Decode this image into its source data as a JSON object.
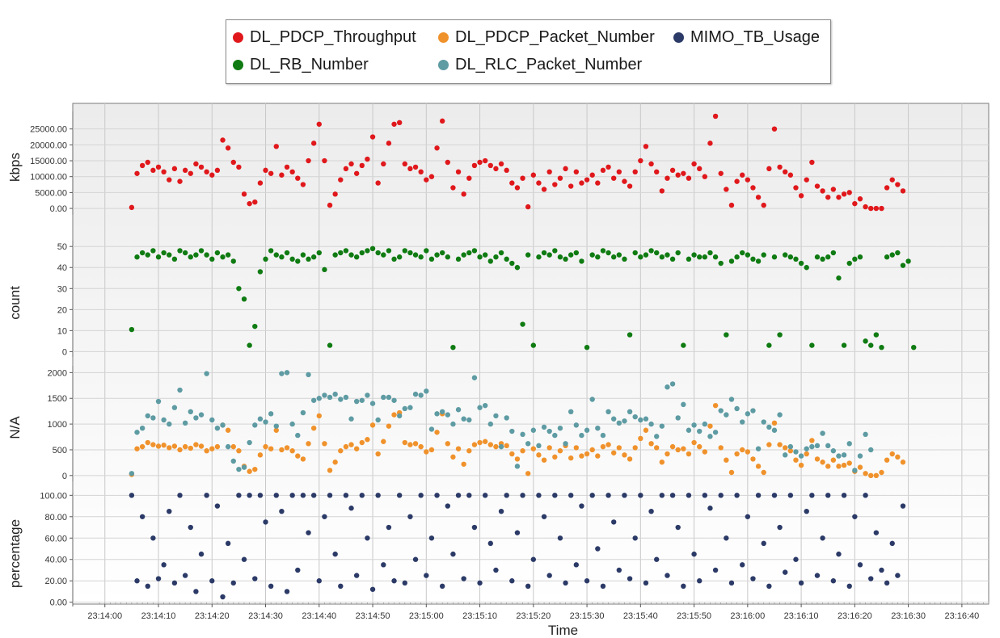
{
  "legend": {
    "items": [
      {
        "label": "DL_PDCP_Throughput",
        "color": "#e0181c"
      },
      {
        "label": "DL_PDCP_Packet_Number",
        "color": "#f0922c"
      },
      {
        "label": "MIMO_TB_Usage",
        "color": "#2b3a67"
      },
      {
        "label": "DL_RB_Number",
        "color": "#0f7b12"
      },
      {
        "label": "DL_RLC_Packet_Number",
        "color": "#5e9ba3"
      }
    ]
  },
  "chart_data": {
    "type": "scatter",
    "xlabel": "Time",
    "x_ticks": [
      "23:14:00",
      "23:14:10",
      "23:14:20",
      "23:14:30",
      "23:14:40",
      "23:14:50",
      "23:15:00",
      "23:15:10",
      "23:15:20",
      "23:15:30",
      "23:15:40",
      "23:15:50",
      "23:16:00",
      "23:16:10",
      "23:16:20",
      "23:16:30",
      "23:16:40"
    ],
    "x_range_seconds": [
      -6,
      165
    ],
    "panels": [
      {
        "ylabel": "kbps",
        "ylim": [
          -1000,
          30000
        ],
        "y_ticks": [
          "0.00",
          "5000.00",
          "10000.00",
          "15000.00",
          "20000.00",
          "25000.00"
        ],
        "series": [
          {
            "name": "DL_PDCP_Throughput",
            "color": "#e0181c",
            "x_start": 5,
            "x_step": 1,
            "values": [
              300,
              11000,
              13500,
              14500,
              12000,
              13000,
              11500,
              9000,
              12500,
              8500,
              12000,
              11000,
              14000,
              13000,
              11500,
              10500,
              12000,
              21500,
              19000,
              14500,
              13000,
              4500,
              1500,
              2000,
              8000,
              12000,
              11000,
              19500,
              10500,
              13000,
              11500,
              9500,
              7500,
              15000,
              20500,
              26500,
              15000,
              1000,
              4500,
              9000,
              12500,
              14000,
              11000,
              13500,
              15500,
              22500,
              8000,
              14000,
              20500,
              26500,
              27000,
              14000,
              12500,
              13000,
              11500,
              9000,
              10000,
              19000,
              27500,
              14500,
              6500,
              11500,
              4500,
              9500,
              13500,
              14500,
              15000,
              13500,
              12500,
              14000,
              12000,
              8000,
              6500,
              9500,
              500,
              10500,
              8000,
              6000,
              11500,
              7500,
              9500,
              12500,
              7000,
              11500,
              8000,
              9000,
              10500,
              8000,
              12000,
              13000,
              9500,
              11500,
              8500,
              7000,
              11500,
              15000,
              19500,
              14000,
              11500,
              5500,
              9500,
              12000,
              10500,
              11000,
              9500,
              14000,
              12500,
              10000,
              20500,
              29000,
              11000,
              6000,
              1000,
              8500,
              10500,
              9000,
              6500,
              3500,
              1000,
              12500,
              25000,
              13000,
              11500,
              10500,
              6500,
              4000,
              9000,
              14500,
              7000,
              5500,
              3500,
              6000,
              3500,
              4500,
              5000,
              1500,
              3000,
              500,
              0,
              0,
              0,
              6500,
              9000,
              7500,
              5500
            ]
          }
        ]
      },
      {
        "ylabel": "count",
        "ylim": [
          -1,
          52
        ],
        "y_ticks": [
          "0",
          "10",
          "20",
          "30",
          "40",
          "50"
        ],
        "series": [
          {
            "name": "DL_RB_Number",
            "color": "#0f7b12",
            "x_start": 5,
            "x_step": 1,
            "values": [
              10.5,
              45,
              47,
              46,
              48,
              45,
              47,
              46,
              44,
              48,
              47,
              45,
              46,
              48,
              46,
              44,
              47,
              45,
              46,
              43,
              30,
              25,
              3,
              12,
              38,
              44,
              48,
              46,
              45,
              47,
              44,
              43,
              46,
              44,
              45,
              47,
              39,
              3,
              46,
              47,
              48,
              46,
              45,
              47,
              48,
              49,
              47,
              46,
              48,
              44,
              45,
              48,
              47,
              46,
              45,
              48,
              44,
              46,
              47,
              45,
              2,
              44,
              46,
              47,
              48,
              45,
              46,
              43,
              45,
              47,
              44,
              42,
              40,
              13,
              46,
              3,
              45,
              47,
              46,
              48,
              45,
              44,
              46,
              47,
              43,
              2,
              46,
              45,
              48,
              47,
              45,
              46,
              44,
              8,
              47,
              45,
              46,
              48,
              47,
              45,
              46,
              44,
              47,
              3,
              44,
              46,
              45,
              45,
              47,
              45,
              42,
              8,
              43,
              45,
              47,
              46,
              44,
              43,
              46,
              3,
              45,
              8,
              46,
              45,
              44,
              42,
              40,
              3,
              45,
              44,
              45,
              47,
              35,
              3,
              42,
              44,
              45,
              5,
              3,
              8,
              2,
              45,
              46,
              47,
              41,
              43,
              2
            ]
          }
        ]
      },
      {
        "ylabel": "N/A",
        "ylim": [
          -50,
          2100
        ],
        "y_ticks": [
          "0",
          "500",
          "1000",
          "1500",
          "2000"
        ],
        "series": [
          {
            "name": "DL_PDCP_Packet_Number",
            "color": "#f0922c",
            "x_start": 5,
            "x_step": 1,
            "values": [
              20,
              520,
              560,
              640,
              600,
              570,
              590,
              540,
              570,
              500,
              560,
              530,
              600,
              570,
              480,
              520,
              560,
              980,
              880,
              560,
              480,
              180,
              80,
              120,
              400,
              560,
              520,
              880,
              500,
              540,
              480,
              380,
              320,
              620,
              920,
              1160,
              620,
              100,
              260,
              480,
              560,
              600,
              520,
              640,
              700,
              980,
              420,
              660,
              960,
              1180,
              1220,
              640,
              600,
              620,
              560,
              460,
              500,
              840,
              1200,
              620,
              360,
              520,
              220,
              480,
              600,
              640,
              660,
              600,
              560,
              620,
              580,
              420,
              320,
              480,
              40,
              520,
              400,
              300,
              540,
              360,
              480,
              580,
              340,
              540,
              380,
              420,
              500,
              380,
              560,
              600,
              440,
              540,
              400,
              320,
              540,
              720,
              880,
              620,
              540,
              260,
              420,
              560,
              500,
              520,
              420,
              640,
              560,
              460,
              960,
              1360,
              540,
              300,
              60,
              420,
              500,
              460,
              320,
              180,
              60,
              600,
              1020,
              600,
              540,
              480,
              300,
              200,
              420,
              680,
              320,
              260,
              180,
              300,
              180,
              200,
              240,
              80,
              160,
              40,
              0,
              0,
              60,
              300,
              420,
              360,
              260
            ]
          },
          {
            "name": "DL_RLC_Packet_Number",
            "color": "#5e9ba3",
            "x_start": 5,
            "x_step": 1,
            "values": [
              40,
              840,
              920,
              1160,
              1120,
              1440,
              1080,
              1000,
              1320,
              1660,
              1020,
              1240,
              1120,
              1180,
              1980,
              1080,
              920,
              980,
              560,
              280,
              120,
              160,
              640,
              980,
              1100,
              1040,
              1200,
              960,
              1980,
              2000,
              1000,
              780,
              1220,
              1960,
              1460,
              1500,
              1560,
              1520,
              1580,
              1480,
              1520,
              1100,
              1440,
              1460,
              1560,
              1400,
              1080,
              1520,
              1520,
              1460,
              1160,
              1300,
              1320,
              1580,
              1560,
              1640,
              900,
              1200,
              1240,
              1180,
              1000,
              1280,
              1100,
              1080,
              1900,
              1320,
              1360,
              1000,
              1160,
              560,
              1120,
              860,
              180,
              800,
              620,
              880,
              580,
              940,
              860,
              780,
              920,
              620,
              1240,
              980,
              780,
              880,
              1480,
              920,
              780,
              1240,
              1100,
              1020,
              1060,
              1240,
              1140,
              1080,
              1100,
              1000,
              760,
              960,
              1720,
              1780,
              1120,
              1380,
              880,
              980,
              860,
              1000,
              760,
              840,
              1260,
              1180,
              1480,
              1300,
              1040,
              1200,
              1260,
              520,
              1040,
              940,
              880,
              1180,
              400,
              560,
              460,
              380,
              520,
              560,
              580,
              820,
              580,
              480,
              380,
              400,
              620,
              100,
              380,
              800,
              500
            ]
          }
        ]
      },
      {
        "ylabel": "percentage",
        "ylim": [
          -1,
          101
        ],
        "y_ticks": [
          "0.00",
          "20.00",
          "40.00",
          "60.00",
          "80.00",
          "100.00"
        ],
        "series": [
          {
            "name": "MIMO_TB_Usage",
            "color": "#2b3a67",
            "x_start": 5,
            "x_step": 1,
            "values": [
              100,
              20,
              80,
              15,
              60,
              22,
              35,
              85,
              18,
              100,
              25,
              70,
              10,
              45,
              100,
              20,
              90,
              5,
              55,
              18,
              100,
              40,
              100,
              22,
              100,
              75,
              15,
              100,
              85,
              10,
              100,
              30,
              100,
              65,
              100,
              20,
              80,
              100,
              45,
              15,
              100,
              88,
              25,
              100,
              60,
              12,
              100,
              35,
              70,
              20,
              100,
              18,
              80,
              40,
              100,
              25,
              60,
              100,
              15,
              90,
              45,
              100,
              22,
              100,
              70,
              18,
              100,
              55,
              30,
              85,
              100,
              20,
              65,
              100,
              15,
              40,
              100,
              80,
              25,
              100,
              60,
              18,
              100,
              35,
              90,
              20,
              100,
              50,
              15,
              100,
              75,
              30,
              100,
              22,
              60,
              100,
              18,
              85,
              40,
              100,
              25,
              100,
              70,
              15,
              100,
              45,
              20,
              100,
              88,
              30,
              100,
              60,
              18,
              100,
              35,
              80,
              22,
              100,
              55,
              15,
              100,
              70,
              28,
              100,
              40,
              18,
              85,
              100,
              25,
              60,
              100,
              20,
              45,
              100,
              15,
              80,
              35,
              100,
              22,
              65,
              30,
              18,
              55,
              25,
              90
            ]
          }
        ]
      }
    ]
  }
}
